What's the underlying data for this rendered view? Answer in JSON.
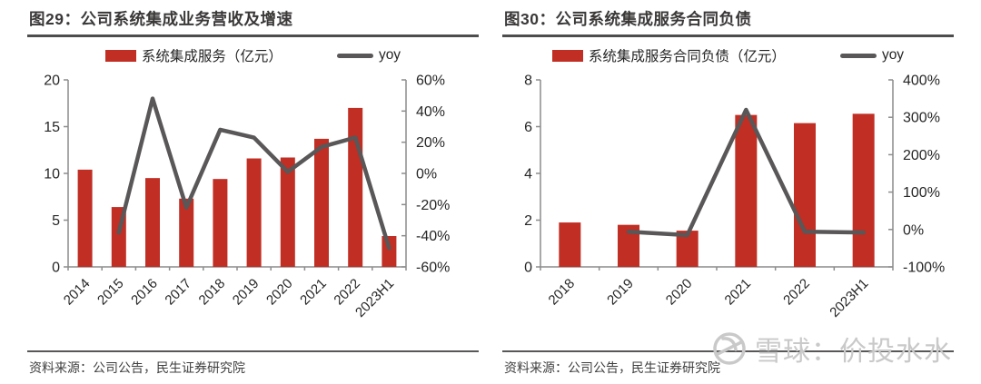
{
  "colors": {
    "bar": "#C02E24",
    "line": "#595757",
    "axis": "#8C8C8C",
    "tick_text": "#262626",
    "title_text": "#3B3838",
    "rule": "#4D4D4D",
    "watermark": "#C9C9C9"
  },
  "chart_data": [
    {
      "type": "bar",
      "title": "图29：公司系统集成业务营收及增速",
      "categories": [
        "2014",
        "2015",
        "2016",
        "2017",
        "2018",
        "2019",
        "2020",
        "2021",
        "2022",
        "2023H1"
      ],
      "series": [
        {
          "name": "系统集成服务（亿元）",
          "type": "bar",
          "axis": "left",
          "values": [
            10.4,
            6.4,
            9.5,
            7.3,
            9.4,
            11.6,
            11.7,
            13.7,
            17.0,
            3.3
          ]
        },
        {
          "name": "yoy",
          "type": "line",
          "axis": "right",
          "values": [
            null,
            -38,
            48,
            -22,
            28,
            23,
            1,
            17,
            23,
            -48
          ]
        }
      ],
      "left_axis": {
        "min": 0,
        "max": 20,
        "ticks": [
          0,
          5,
          10,
          15,
          20
        ]
      },
      "right_axis": {
        "min": -60,
        "max": 60,
        "ticks": [
          -60,
          -40,
          -20,
          0,
          20,
          40,
          60
        ],
        "unit": "%"
      },
      "legend_position": "top",
      "grid": false,
      "xlabel": "",
      "ylabel": ""
    },
    {
      "type": "bar",
      "title": "图30：公司系统集成服务合同负债",
      "categories": [
        "2018",
        "2019",
        "2020",
        "2021",
        "2022",
        "2023H1"
      ],
      "series": [
        {
          "name": "系统集成服务合同负债（亿元）",
          "type": "bar",
          "axis": "left",
          "values": [
            1.9,
            1.8,
            1.55,
            6.5,
            6.15,
            6.55
          ]
        },
        {
          "name": "yoy",
          "type": "line",
          "axis": "right",
          "values": [
            null,
            -6,
            -15,
            320,
            -6,
            -8
          ]
        }
      ],
      "left_axis": {
        "min": 0,
        "max": 8,
        "ticks": [
          0,
          2,
          4,
          6,
          8
        ]
      },
      "right_axis": {
        "min": -100,
        "max": 400,
        "ticks": [
          -100,
          0,
          100,
          200,
          300,
          400
        ],
        "unit": "%"
      },
      "legend_position": "top",
      "grid": false,
      "xlabel": "",
      "ylabel": ""
    }
  ],
  "sources": [
    "资料来源：公司公告，民生证券研究院",
    "资料来源：公司公告，民生证券研究院"
  ],
  "watermark": {
    "text": "雪球：价投水水"
  }
}
